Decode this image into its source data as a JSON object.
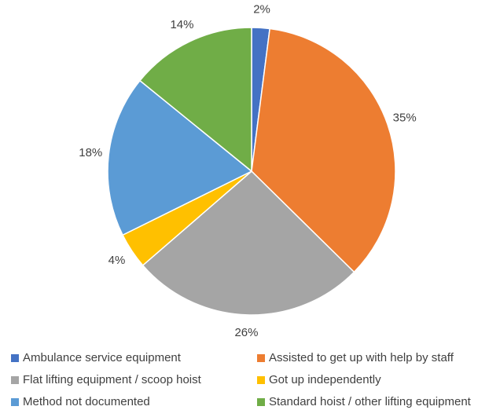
{
  "chart_data": {
    "type": "pie",
    "categories": [
      "Ambulance service equipment",
      "Assisted to get up with help by staff",
      "Flat lifting equipment / scoop hoist",
      "Got up independently",
      "Method not documented",
      "Standard hoist / other lifting equipment"
    ],
    "values": [
      2,
      35,
      26,
      4,
      18,
      14
    ],
    "value_labels": [
      "2%",
      "35%",
      "26%",
      "4%",
      "18%",
      "14%"
    ],
    "colors": [
      "#4472c4",
      "#ed7d31",
      "#a5a5a5",
      "#ffc000",
      "#5b9bd5",
      "#70ad47"
    ]
  }
}
